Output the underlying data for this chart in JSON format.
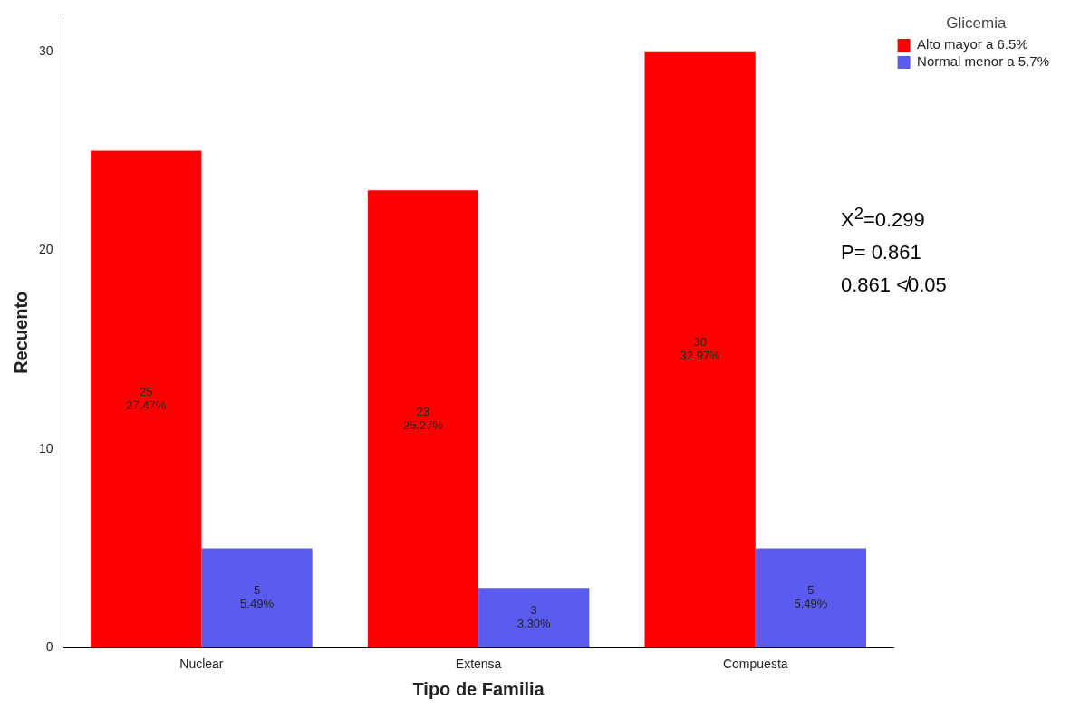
{
  "chart_data": {
    "type": "bar",
    "xlabel": "Tipo de Familia",
    "ylabel": "Recuento",
    "legend_title": "Glicemia",
    "categories": [
      "Nuclear",
      "Extensa",
      "Compuesta"
    ],
    "series": [
      {
        "name": "Alto mayor a 6.5%",
        "color": "#ff0000",
        "values": [
          25,
          23,
          30
        ],
        "value_labels": [
          "25\n27.47%",
          "23\n25.27%",
          "30\n32.97%"
        ]
      },
      {
        "name": "Normal menor a 5.7%",
        "color": "#5b5bf0",
        "values": [
          5,
          3,
          5
        ],
        "value_labels": [
          "5\n5.49%",
          "3\n3.30%",
          "5\n5.49%"
        ]
      }
    ],
    "ylim": [
      0,
      31.7
    ],
    "yticks": [
      0,
      10,
      20,
      30
    ],
    "grid": false,
    "legend": "top right",
    "annotations": [
      "X$^{2}$=0.299",
      "P= 0.861",
      "0.861 ≮0.05"
    ]
  }
}
